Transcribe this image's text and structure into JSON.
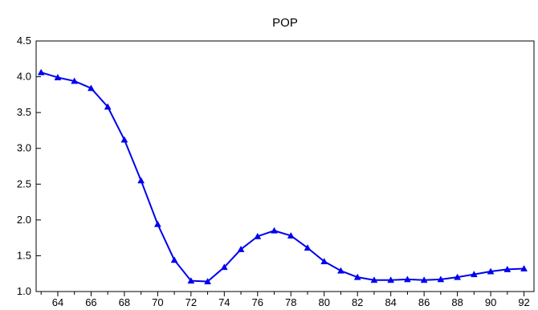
{
  "chart_data": {
    "type": "line",
    "title": "POP",
    "xlabel": "",
    "ylabel": "",
    "x": [
      63,
      64,
      65,
      66,
      67,
      68,
      69,
      70,
      71,
      72,
      73,
      74,
      75,
      76,
      77,
      78,
      79,
      80,
      81,
      82,
      83,
      84,
      85,
      86,
      87,
      88,
      89,
      90,
      91,
      92
    ],
    "series": [
      {
        "values": [
          4.06,
          3.99,
          3.94,
          3.84,
          3.58,
          3.12,
          2.55,
          1.94,
          1.44,
          1.15,
          1.14,
          1.34,
          1.59,
          1.77,
          1.85,
          1.78,
          1.61,
          1.42,
          1.29,
          1.2,
          1.16,
          1.16,
          1.17,
          1.16,
          1.17,
          1.2,
          1.24,
          1.28,
          1.31,
          1.32
        ],
        "color": "#0000ee",
        "marker": "triangle"
      }
    ],
    "xlim": [
      62.7,
      92.6
    ],
    "ylim": [
      1.0,
      4.5
    ],
    "y_ticks": [
      "1.0",
      "1.5",
      "2.0",
      "2.5",
      "3.0",
      "3.5",
      "4.0",
      "4.5"
    ],
    "x_tick_labels": [
      "64",
      "66",
      "68",
      "70",
      "72",
      "74",
      "76",
      "78",
      "80",
      "82",
      "84",
      "86",
      "88",
      "90",
      "92"
    ],
    "grid": false,
    "legend": "none"
  }
}
